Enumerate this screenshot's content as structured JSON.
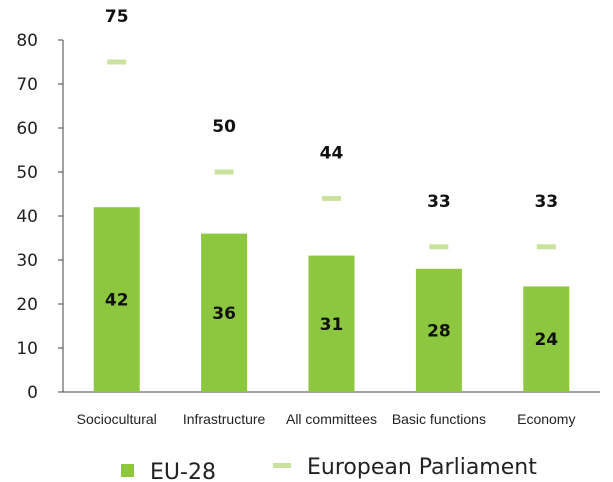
{
  "chart_data": {
    "type": "bar",
    "title": "",
    "xlabel": "",
    "ylabel": "",
    "categories": [
      "Sociocultural",
      "Infrastructure",
      "All committees",
      "Basic functions",
      "Economy"
    ],
    "series": [
      {
        "name": "EU-28",
        "kind": "bar",
        "values": [
          42,
          36,
          31,
          28,
          24
        ]
      },
      {
        "name": "European Parliament",
        "kind": "marker",
        "values": [
          75,
          50,
          44,
          33,
          33
        ]
      }
    ],
    "ylim": [
      0,
      80
    ],
    "yticks": [
      0,
      10,
      20,
      30,
      40,
      50,
      60,
      70,
      80
    ],
    "grid": false,
    "legend_position": "bottom",
    "colors": {
      "EU-28": "#8dc63f",
      "European Parliament": "#c9e29e"
    }
  }
}
